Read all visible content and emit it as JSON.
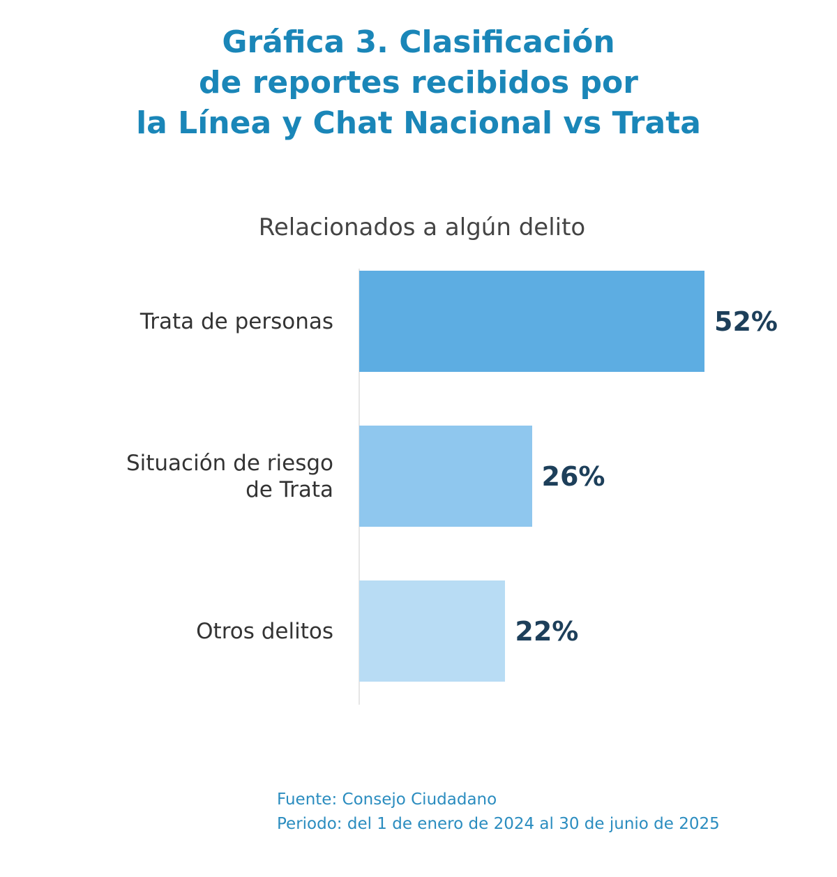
{
  "chart_data": {
    "type": "bar",
    "orientation": "horizontal",
    "title": "Gráfica 3. Clasificación\nde reportes recibidos por\nla Línea y Chat Nacional vs Trata",
    "subtitle": "Relacionados a algún delito",
    "categories": [
      "Trata de personas",
      "Situación de riesgo\nde Trata",
      "Otros delitos"
    ],
    "values": [
      52,
      26,
      22
    ],
    "value_labels": [
      "52%",
      "26%",
      "22%"
    ],
    "colors": [
      "#5dade2",
      "#8fc7ee",
      "#b8dcf4"
    ],
    "source": "Fuente: Consejo Ciudadano",
    "period": "Periodo: del 1 de enero de 2024 al 30 de junio de 2025"
  }
}
